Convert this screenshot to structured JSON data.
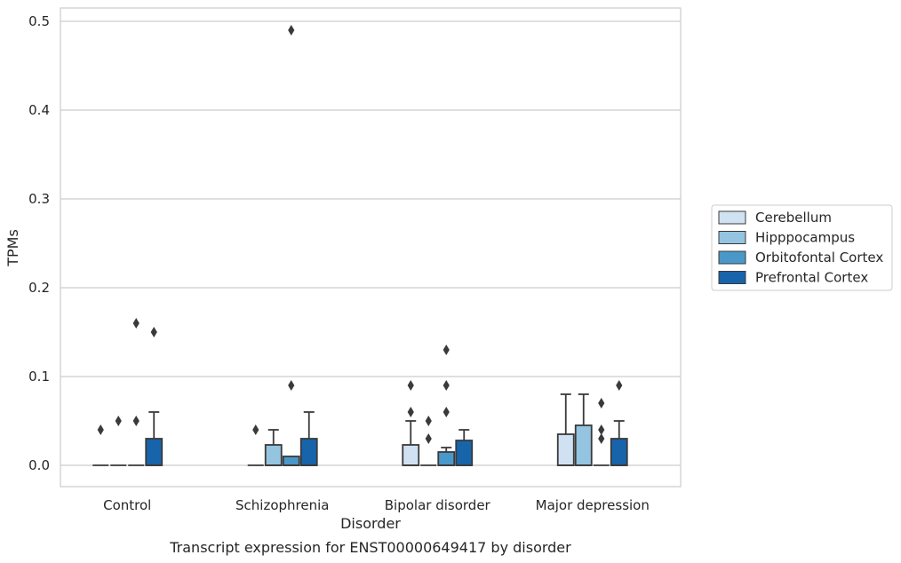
{
  "caption": "Transcript expression for ENST00000649417 by disorder",
  "chart_data": {
    "type": "box",
    "xlabel": "Disorder",
    "ylabel": "TPMs",
    "categories": [
      "Control",
      "Schizophrenia",
      "Bipolar disorder",
      "Major depression"
    ],
    "ylim": [
      -0.024,
      0.515
    ],
    "yticks": [
      0.0,
      0.1,
      0.2,
      0.3,
      0.4,
      0.5
    ],
    "ytick_labels": [
      "0.0",
      "0.1",
      "0.2",
      "0.3",
      "0.4",
      "0.5"
    ],
    "grid": true,
    "legend_position": "center-right outside",
    "series": [
      {
        "name": "Cerebellum",
        "color": "#d0e1f2",
        "boxes": [
          {
            "q1": 0.0,
            "median": 0.0,
            "q3": 0.0,
            "whislo": 0.0,
            "whishi": 0.0,
            "fliers": [
              0.04
            ]
          },
          {
            "q1": 0.0,
            "median": 0.0,
            "q3": 0.0,
            "whislo": 0.0,
            "whishi": 0.0,
            "fliers": [
              0.04
            ]
          },
          {
            "q1": 0.0,
            "median": 0.0,
            "q3": 0.023,
            "whislo": 0.0,
            "whishi": 0.05,
            "fliers": [
              0.06,
              0.09
            ]
          },
          {
            "q1": 0.0,
            "median": 0.0,
            "q3": 0.035,
            "whislo": 0.0,
            "whishi": 0.08,
            "fliers": []
          }
        ]
      },
      {
        "name": "Hipppocampus",
        "color": "#94c4df",
        "boxes": [
          {
            "q1": 0.0,
            "median": 0.0,
            "q3": 0.0,
            "whislo": 0.0,
            "whishi": 0.0,
            "fliers": [
              0.05
            ]
          },
          {
            "q1": 0.0,
            "median": 0.0,
            "q3": 0.023,
            "whislo": 0.0,
            "whishi": 0.04,
            "fliers": []
          },
          {
            "q1": 0.0,
            "median": 0.0,
            "q3": 0.0,
            "whislo": 0.0,
            "whishi": 0.0,
            "fliers": [
              0.03,
              0.05
            ]
          },
          {
            "q1": 0.0,
            "median": 0.0,
            "q3": 0.045,
            "whislo": 0.0,
            "whishi": 0.08,
            "fliers": []
          }
        ]
      },
      {
        "name": "Orbitofontal Cortex",
        "color": "#4a98c9",
        "boxes": [
          {
            "q1": 0.0,
            "median": 0.0,
            "q3": 0.0,
            "whislo": 0.0,
            "whishi": 0.0,
            "fliers": [
              0.05,
              0.16
            ]
          },
          {
            "q1": 0.0,
            "median": 0.0,
            "q3": 0.01,
            "whislo": 0.0,
            "whishi": 0.01,
            "fliers": [
              0.09,
              0.49
            ]
          },
          {
            "q1": 0.0,
            "median": 0.0,
            "q3": 0.015,
            "whislo": 0.0,
            "whishi": 0.02,
            "fliers": [
              0.06,
              0.09,
              0.13
            ]
          },
          {
            "q1": 0.0,
            "median": 0.0,
            "q3": 0.0,
            "whislo": 0.0,
            "whishi": 0.0,
            "fliers": [
              0.03,
              0.04,
              0.07
            ]
          }
        ]
      },
      {
        "name": "Prefrontal Cortex",
        "color": "#1764ab",
        "boxes": [
          {
            "q1": 0.0,
            "median": 0.0,
            "q3": 0.03,
            "whislo": 0.0,
            "whishi": 0.06,
            "fliers": [
              0.15
            ]
          },
          {
            "q1": 0.0,
            "median": 0.0,
            "q3": 0.03,
            "whislo": 0.0,
            "whishi": 0.06,
            "fliers": []
          },
          {
            "q1": 0.0,
            "median": 0.0,
            "q3": 0.028,
            "whislo": 0.0,
            "whishi": 0.04,
            "fliers": []
          },
          {
            "q1": 0.0,
            "median": 0.0,
            "q3": 0.03,
            "whislo": 0.0,
            "whishi": 0.05,
            "fliers": [
              0.09
            ]
          }
        ]
      }
    ]
  }
}
